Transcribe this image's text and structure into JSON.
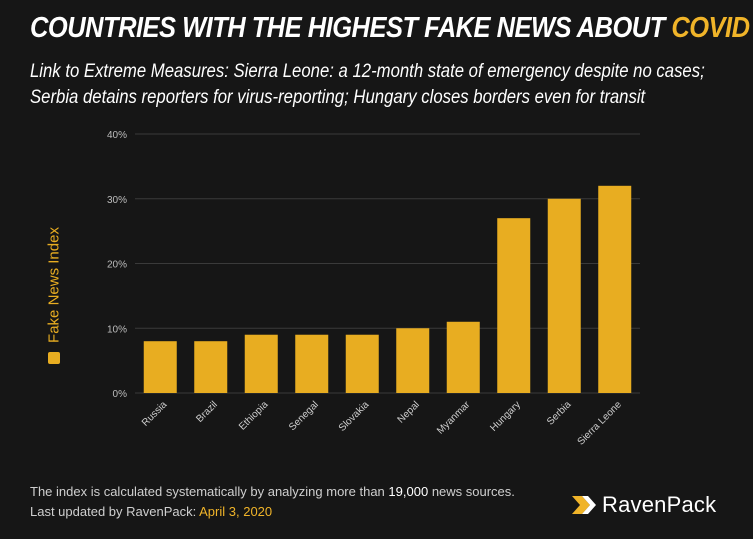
{
  "header": {
    "title_main": "COUNTRIES WITH THE HIGHEST FAKE NEWS ABOUT",
    "title_accent": "COVID",
    "subtitle_line1": "Link to Extreme Measures: Sierra Leone: a 12-month state of emergency despite no cases;",
    "subtitle_line2": "Serbia detains reporters for virus-reporting; Hungary closes borders even for transit"
  },
  "chart_data": {
    "type": "bar",
    "categories": [
      "Russia",
      "Brazil",
      "Ethiopia",
      "Senegal",
      "Slovakia",
      "Nepal",
      "Myanmar",
      "Hungary",
      "Serbia",
      "Sierra Leone"
    ],
    "series": [
      {
        "name": "Fake News Index",
        "values": [
          8,
          8,
          9,
          9,
          9,
          10,
          11,
          27,
          30,
          32
        ]
      }
    ],
    "ylabel": "",
    "ylim": [
      0,
      40
    ],
    "yticks": [
      "0%",
      "10%",
      "20%",
      "30%",
      "40%"
    ],
    "ytick_values": [
      0,
      10,
      20,
      30,
      40
    ],
    "grid": true,
    "legend": "left",
    "bar_color": "#e8ad21"
  },
  "footer": {
    "line1_prefix": "The index is calculated systematically by analyzing more than",
    "line1_highlight": "19,000",
    "line1_suffix": "news sources.",
    "line2_prefix": "Last updated by RavenPack:",
    "line2_highlight": "April 3, 2020"
  },
  "brand": {
    "name": "RavenPack",
    "icon": "ravenpack-logo-icon"
  },
  "colors": {
    "background": "#161616",
    "accent": "#f0b429",
    "bar": "#e8ad21",
    "grid": "#3a3a3a"
  }
}
